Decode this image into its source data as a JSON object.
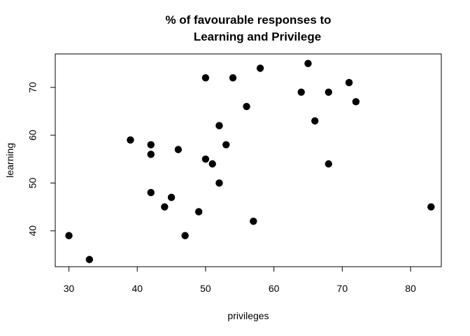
{
  "chart_data": {
    "type": "scatter",
    "title_lines": [
      "% of favourable responses to",
      "Learning and Privilege"
    ],
    "xlabel": "privileges",
    "ylabel": "learning",
    "xlim": [
      28,
      84.5
    ],
    "ylim": [
      32.5,
      77
    ],
    "xticks": [
      30,
      40,
      50,
      60,
      70,
      80
    ],
    "yticks": [
      40,
      50,
      60,
      70
    ],
    "grid": false,
    "legend": "none",
    "point_color": "#000000",
    "points": [
      {
        "x": 30,
        "y": 39
      },
      {
        "x": 33,
        "y": 34
      },
      {
        "x": 39,
        "y": 59
      },
      {
        "x": 42,
        "y": 58
      },
      {
        "x": 42,
        "y": 56
      },
      {
        "x": 42,
        "y": 48
      },
      {
        "x": 44,
        "y": 45
      },
      {
        "x": 45,
        "y": 47
      },
      {
        "x": 46,
        "y": 57
      },
      {
        "x": 47,
        "y": 39
      },
      {
        "x": 49,
        "y": 44
      },
      {
        "x": 50,
        "y": 72
      },
      {
        "x": 50,
        "y": 55
      },
      {
        "x": 51,
        "y": 54
      },
      {
        "x": 52,
        "y": 62
      },
      {
        "x": 52,
        "y": 50
      },
      {
        "x": 53,
        "y": 58
      },
      {
        "x": 54,
        "y": 72
      },
      {
        "x": 56,
        "y": 66
      },
      {
        "x": 57,
        "y": 42
      },
      {
        "x": 58,
        "y": 74
      },
      {
        "x": 64,
        "y": 69
      },
      {
        "x": 65,
        "y": 75
      },
      {
        "x": 66,
        "y": 63
      },
      {
        "x": 68,
        "y": 69
      },
      {
        "x": 68,
        "y": 54
      },
      {
        "x": 71,
        "y": 71
      },
      {
        "x": 72,
        "y": 67
      },
      {
        "x": 83,
        "y": 45
      }
    ]
  }
}
